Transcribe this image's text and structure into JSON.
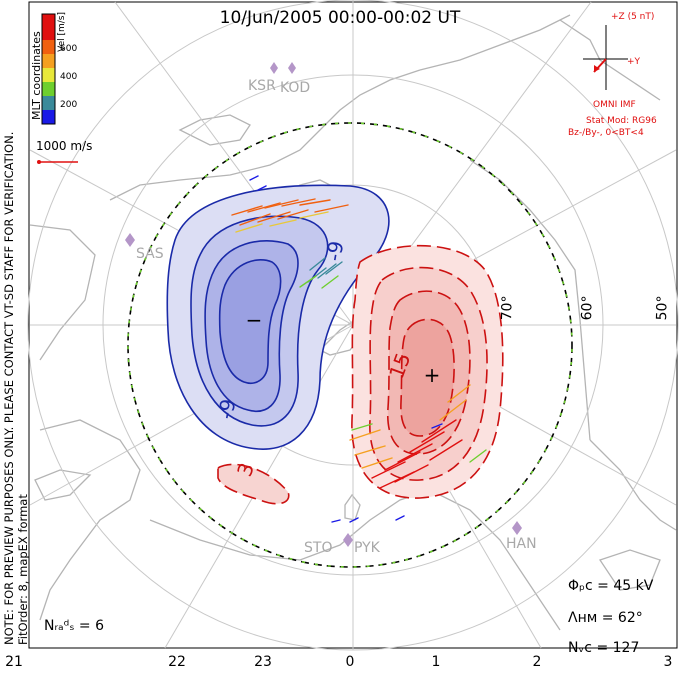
{
  "header": {
    "title": "10/Jun/2005 00:00-00:02 UT",
    "coordinates": "MLT coordinates"
  },
  "notes": {
    "preview": "NOTE: FOR PREVIEW PURPOSES ONLY. PLEASE CONTACT VT-SD STAFF FOR VERIFICATION.",
    "fit": "FitOrder: 8,  mapEX format"
  },
  "colorbar": {
    "unit": "Vel [m/s]",
    "ticks": [
      "200",
      "400",
      "600"
    ],
    "colors": [
      "#1a1ae6",
      "#3a8a9a",
      "#6ecf2e",
      "#e8e83a",
      "#f5a020",
      "#f06010",
      "#e01010"
    ]
  },
  "velocity_reference": {
    "label": "1000 m/s"
  },
  "imf": {
    "z_label": "+Z (5 nT)",
    "y_label": "+Y",
    "title": "OMNI IMF",
    "stat_mod": "Stat Mod: RG96",
    "condition": "Bz-/By-, 0<BT<4"
  },
  "stats": {
    "phi_pc": "Φₚᴄ = 45 kV",
    "lambda_hm": "Λʜᴍ = 62°",
    "n_vc": "Nᵥᴄ = 127",
    "n_rads": "Nᵣₐᵈₛ = 6"
  },
  "mlt_axis": [
    "21",
    "22",
    "23",
    "0",
    "1",
    "2",
    "3"
  ],
  "latitude_labels": [
    "70°",
    "60°",
    "50°"
  ],
  "sites": [
    "KSR",
    "KOD",
    "SAS",
    "STO",
    "PYK",
    "HAN"
  ],
  "contour_labels": [
    "-9",
    "-9",
    "15",
    "3"
  ],
  "potential_markers": {
    "min": "−",
    "max": "+"
  },
  "colors": {
    "negative_contour": "#1a2aa8",
    "positive_contour": "#cc1111",
    "negative_fill": "#b8bce8",
    "positive_fill": "#f0b0ad",
    "coastline": "#b4b4b4",
    "imf_vector": "#e01010"
  }
}
